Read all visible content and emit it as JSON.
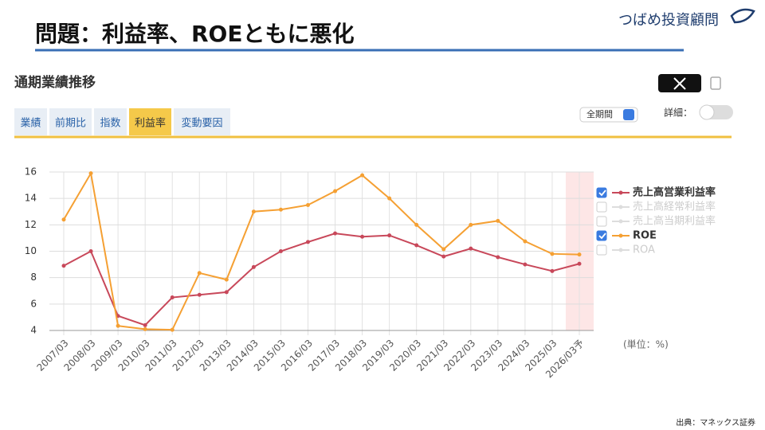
{
  "slide_title": "問題：利益率、ROEともに悪化",
  "logo": "つばめ投資顧問",
  "panel_title": "通期業績推移",
  "tabs": [
    "業績",
    "前期比",
    "指数",
    "利益率",
    "変動要因"
  ],
  "active_tab": 3,
  "period_select": "全期間",
  "detail_label": "詳細：",
  "source": "出典：マネックス証券",
  "chart_data": {
    "type": "line",
    "categories": [
      "2007/03",
      "2008/03",
      "2009/03",
      "2010/03",
      "2011/03",
      "2012/03",
      "2013/03",
      "2014/03",
      "2015/03",
      "2016/03",
      "2017/03",
      "2018/03",
      "2019/03",
      "2020/03",
      "2021/03",
      "2022/03",
      "2023/03",
      "2024/03",
      "2025/03",
      "2026/03予"
    ],
    "series": [
      {
        "name": "売上高営業利益率",
        "color": "#c8485a",
        "values": [
          8.9,
          10.0,
          5.1,
          4.4,
          6.5,
          6.7,
          6.9,
          8.8,
          10.0,
          10.7,
          11.35,
          11.1,
          11.2,
          10.45,
          9.6,
          10.2,
          9.55,
          9.0,
          8.5,
          9.05
        ]
      },
      {
        "name": "ROE",
        "color": "#f5a033",
        "values": [
          12.4,
          15.9,
          4.35,
          4.1,
          4.05,
          8.35,
          7.85,
          13.0,
          13.15,
          13.5,
          14.55,
          15.75,
          14.0,
          12.0,
          10.15,
          12.0,
          12.3,
          10.75,
          9.8,
          9.75
        ]
      }
    ],
    "inactive_series": [
      "売上高経常利益率",
      "売上高当期利益率",
      "ROA"
    ],
    "ylim": [
      4,
      16
    ],
    "yticks": [
      4,
      6,
      8,
      10,
      12,
      14,
      16
    ],
    "grid": true,
    "unit_label": "(単位：%)"
  }
}
